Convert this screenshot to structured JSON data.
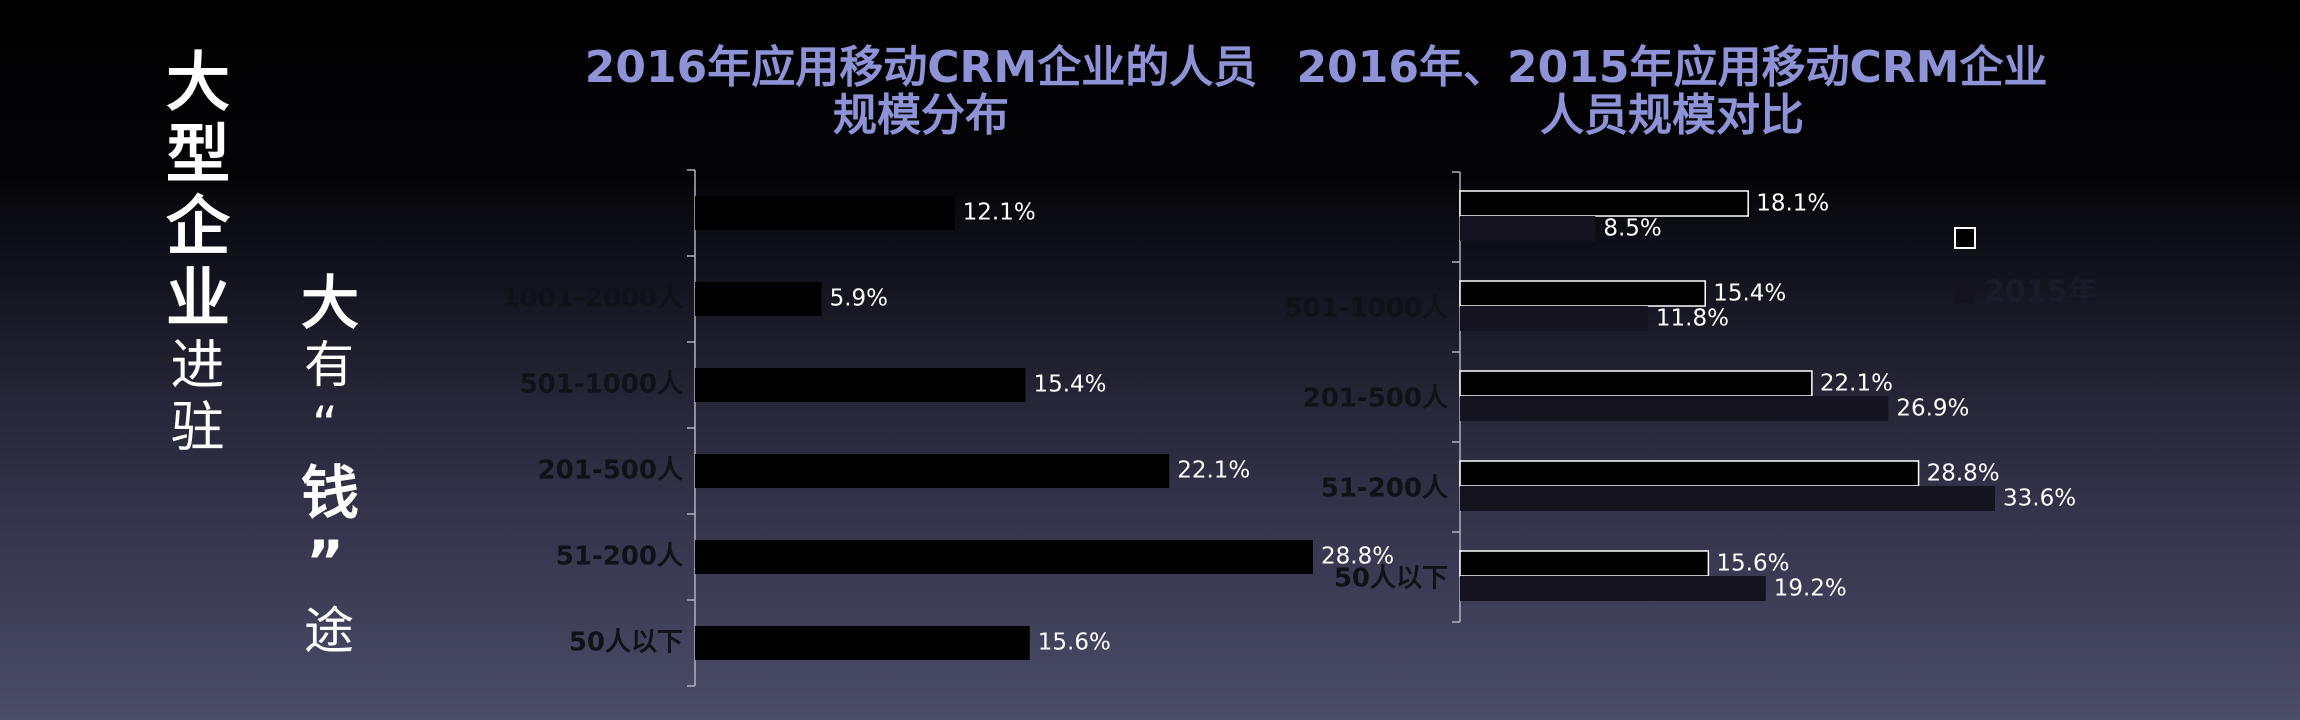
{
  "slide": {
    "headline_bold": "大型企业",
    "headline_rest": "进驻",
    "tagline": [
      {
        "text": "大",
        "bold": true
      },
      {
        "text": "有",
        "bold": false
      },
      {
        "text": "“",
        "bold": false
      },
      {
        "text": "钱”",
        "bold": true
      },
      {
        "text": "途",
        "bold": false
      }
    ]
  },
  "chart_data": [
    {
      "type": "hbar",
      "title": [
        "2016年应用移动CRM企业的人员",
        "规模分布"
      ],
      "categories": [
        null,
        "1001-2000人",
        "501-1000人",
        "201-500人",
        "51-200人",
        "50人以下"
      ],
      "values": [
        12.1,
        5.9,
        15.4,
        22.1,
        28.8,
        15.6
      ],
      "value_labels": [
        "12.1%",
        "5.9%",
        "15.4%",
        "22.1%",
        "28.8%",
        "15.6%"
      ],
      "color": "#000000"
    },
    {
      "type": "grouped-hbar",
      "title": [
        "2016年、2015年应用移动CRM企业",
        "人员规模对比"
      ],
      "categories": [
        null,
        "501-1000人",
        "201-500人",
        "51-200人",
        "50人以下"
      ],
      "series": [
        {
          "name": null,
          "color": "#000000",
          "edgecolor": "#ffffff",
          "values": [
            18.1,
            15.4,
            22.1,
            28.8,
            15.6
          ],
          "value_labels": [
            "18.1%",
            "15.4%",
            "22.1%",
            "28.8%",
            "15.6%"
          ]
        },
        {
          "name": "2015年",
          "color": "#15131f",
          "edgecolor": null,
          "values": [
            8.5,
            11.8,
            26.9,
            33.6,
            19.2
          ],
          "value_labels": [
            "8.5%",
            "11.8%",
            "26.9%",
            "33.6%",
            "19.2%"
          ]
        }
      ],
      "legend": "upper right"
    }
  ]
}
